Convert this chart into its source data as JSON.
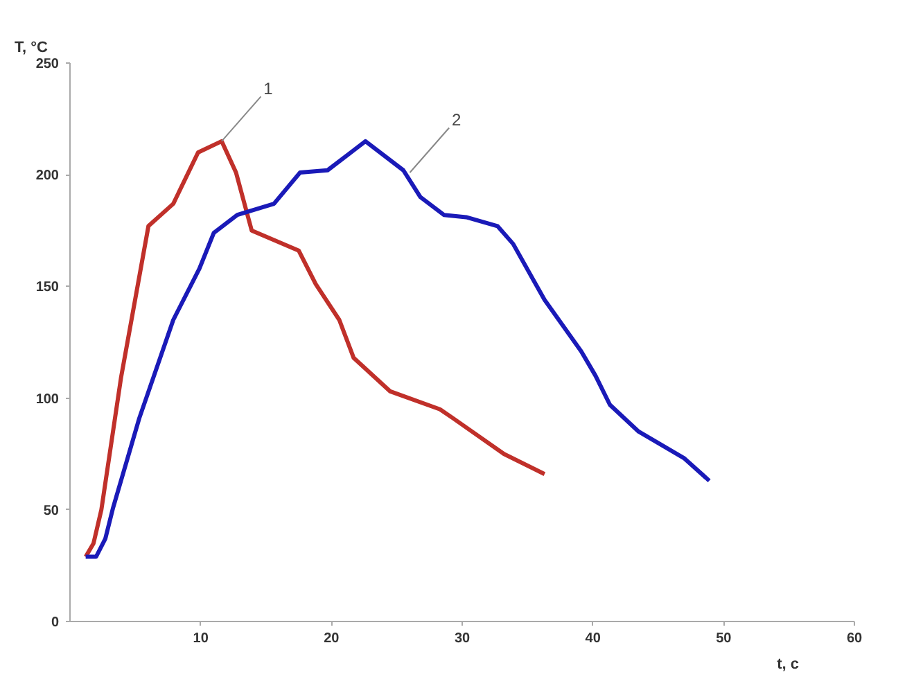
{
  "chart_data": {
    "type": "line",
    "xlabel": "t, c",
    "ylabel": "T, °C",
    "xlim": [
      0,
      60
    ],
    "xticks": [
      10,
      20,
      30,
      40,
      50,
      60
    ],
    "ylim": [
      0,
      250
    ],
    "yticks": [
      0,
      50,
      100,
      150,
      200,
      250
    ],
    "grid": false,
    "marker": "none",
    "line_style": "solid",
    "series": [
      {
        "color": "#c0302a",
        "x": [
          1.2,
          1.8,
          2.4,
          3.9,
          6.0,
          7.9,
          9.8,
          11.6,
          12.7,
          13.9,
          17.5,
          18.8,
          20.6,
          21.7,
          24.5,
          28.3,
          29.3,
          33.2,
          36.3
        ],
        "values": [
          29,
          35,
          50,
          109,
          177,
          187,
          210,
          215,
          201,
          175,
          166,
          151,
          135,
          118,
          103,
          95,
          91,
          75,
          66
        ]
      },
      {
        "color": "#1a1ab8",
        "x": [
          1.2,
          2.0,
          2.7,
          3.3,
          5.3,
          7.9,
          9.9,
          11.0,
          12.8,
          15.6,
          17.6,
          19.7,
          22.6,
          25.5,
          26.8,
          28.6,
          30.3,
          32.7,
          33.9,
          36.3,
          39.1,
          40.2,
          41.3,
          43.5,
          47.0,
          48.9
        ],
        "values": [
          29,
          29,
          37,
          51,
          91,
          135,
          158,
          174,
          182,
          187,
          201,
          202,
          215,
          202,
          190,
          182,
          181,
          177,
          169,
          144,
          121,
          110,
          97,
          85,
          73,
          63
        ]
      }
    ],
    "annotations": [
      {
        "text": "1",
        "x": 11.6,
        "y": 215
      },
      {
        "text": "2",
        "x": 26.0,
        "y": 201
      }
    ]
  }
}
